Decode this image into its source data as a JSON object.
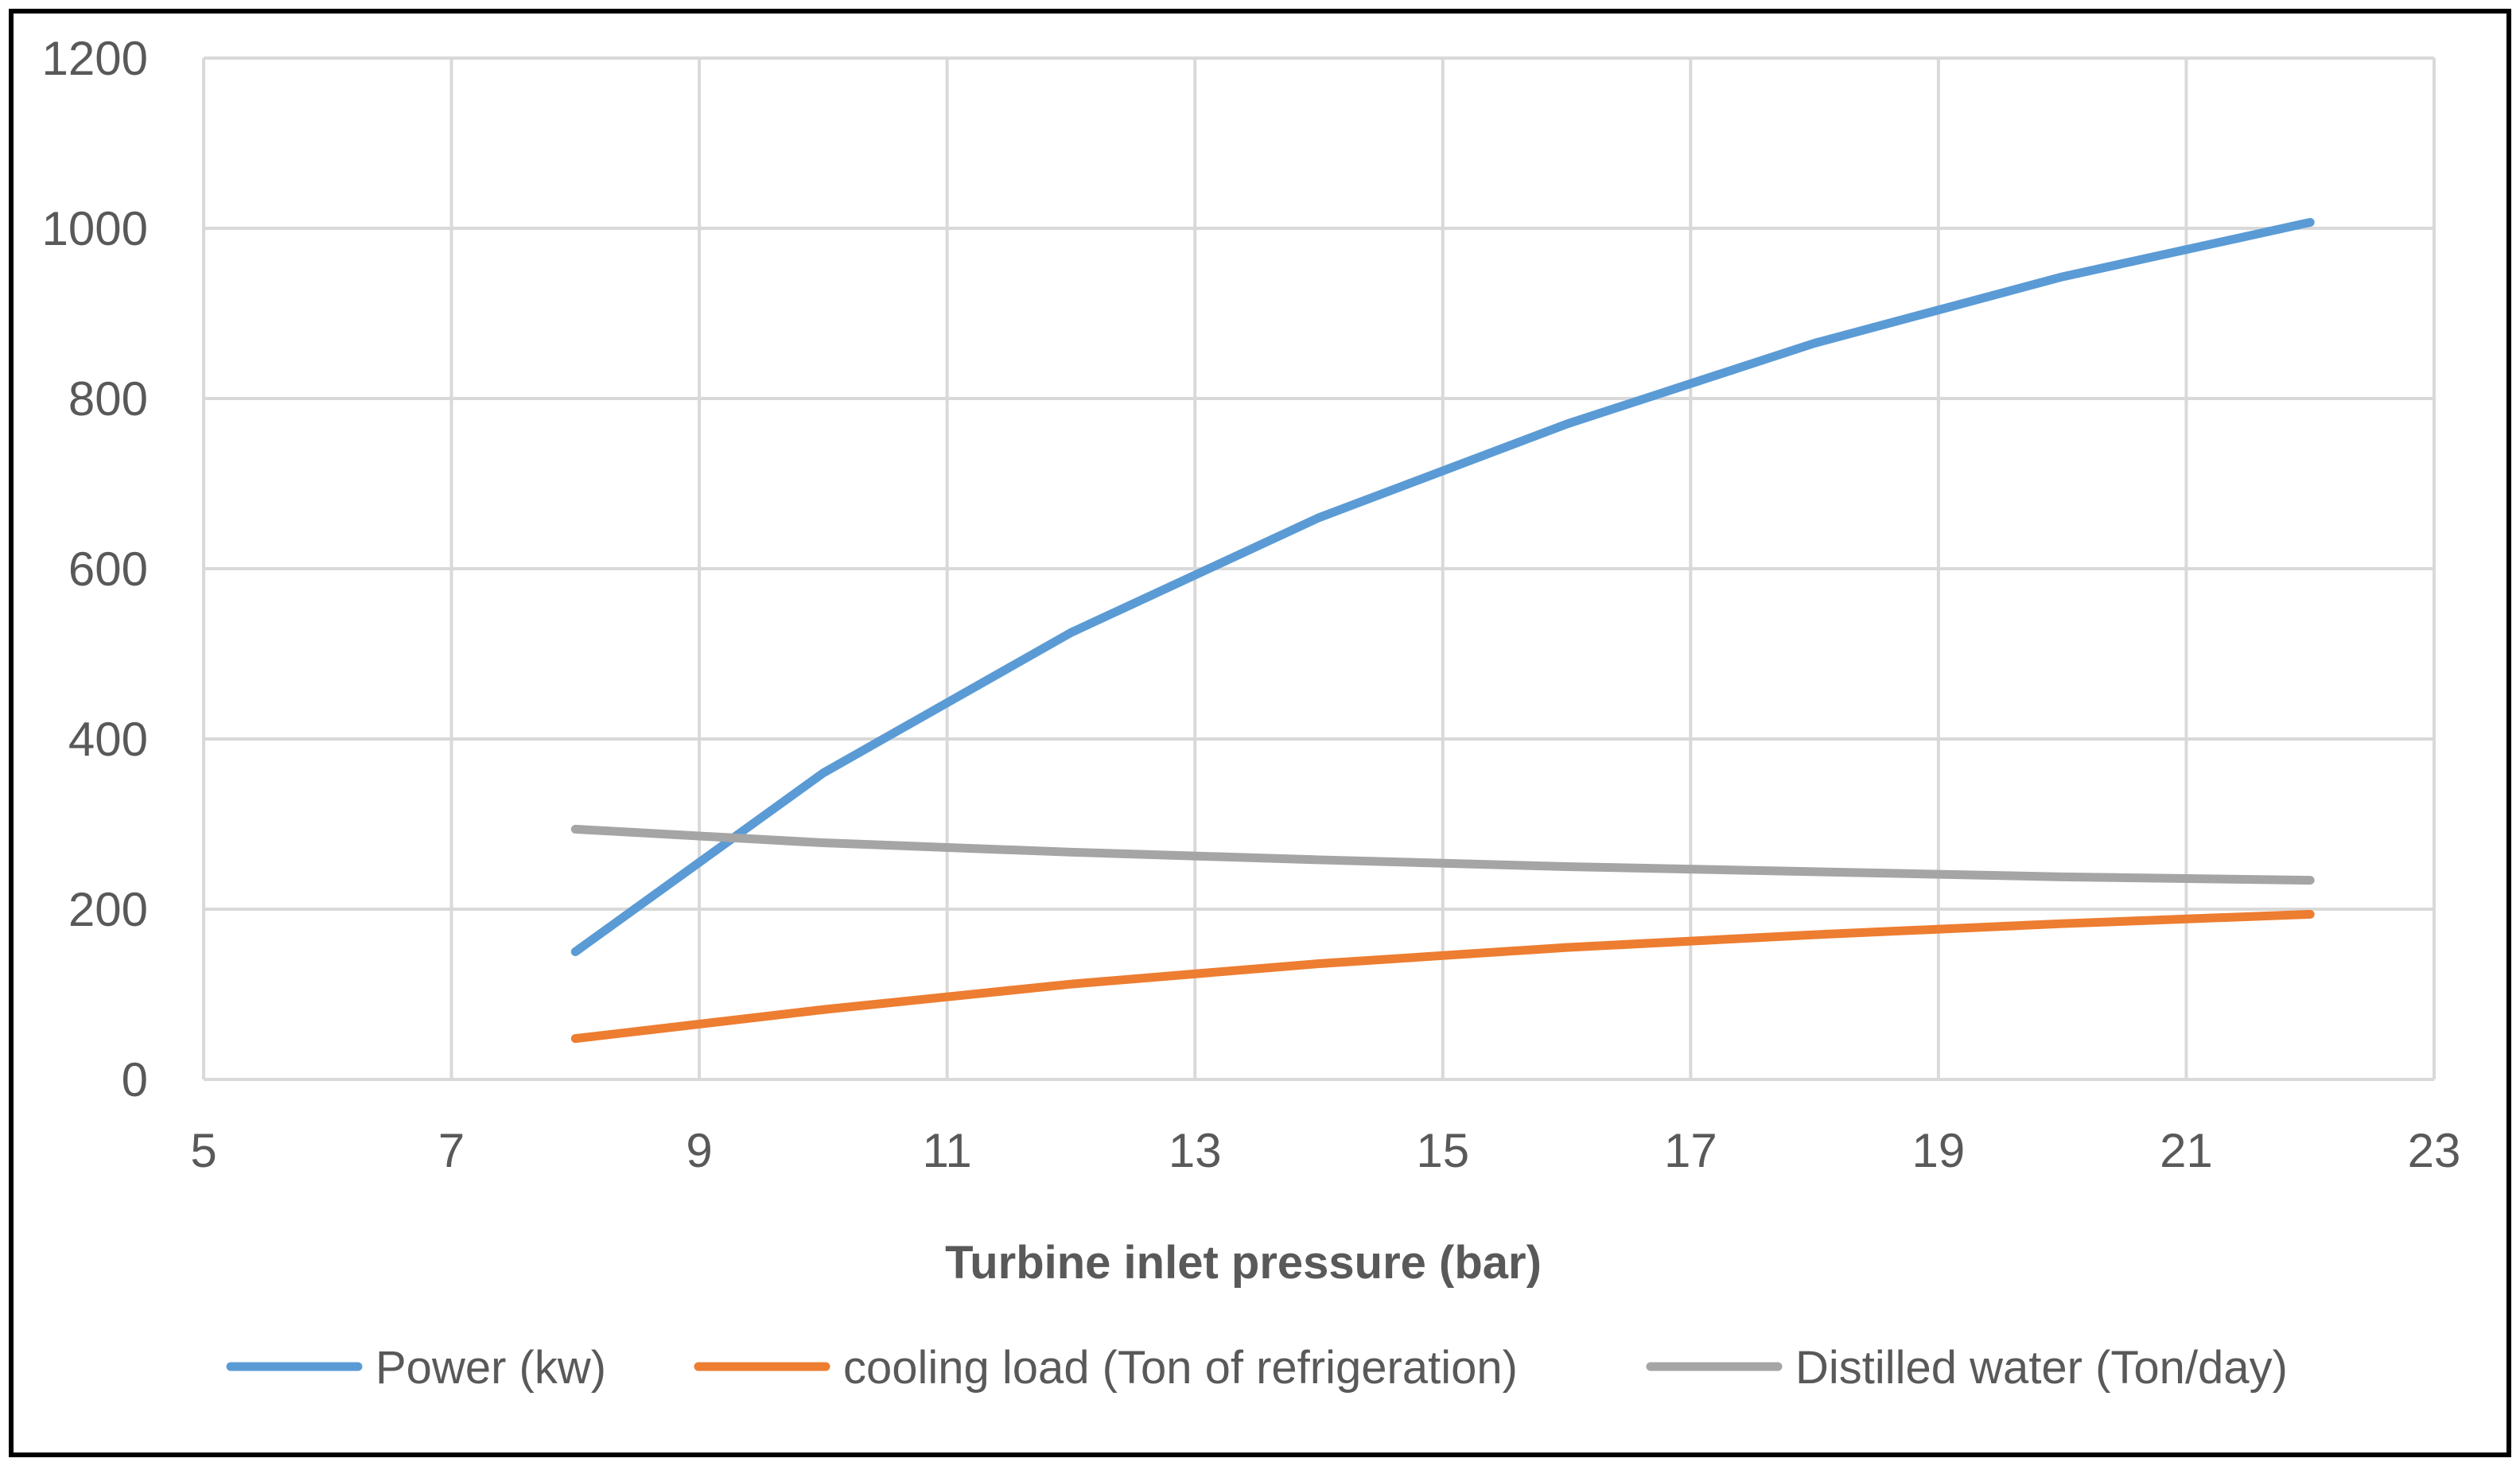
{
  "chart_data": {
    "type": "line",
    "title": "",
    "xlabel": "Turbine inlet pressure (bar)",
    "ylabel": "",
    "xlim": [
      5,
      23
    ],
    "ylim": [
      0,
      1200
    ],
    "xticks": [
      5,
      7,
      9,
      11,
      13,
      15,
      17,
      19,
      21,
      23
    ],
    "yticks": [
      0,
      200,
      400,
      600,
      800,
      1000,
      1200
    ],
    "grid": true,
    "legend_position": "bottom",
    "x": [
      8,
      10,
      12,
      14,
      16,
      18,
      20,
      22
    ],
    "series": [
      {
        "name": "Power (kw)",
        "color": "#5B9BD5",
        "values": [
          150,
          360,
          525,
          660,
          770,
          865,
          943,
          1007
        ]
      },
      {
        "name": "cooling load (Ton of refrigeration)",
        "color": "#ED7D31",
        "values": [
          48,
          82,
          112,
          136,
          155,
          170,
          183,
          194
        ]
      },
      {
        "name": "Distilled water (Ton/day)",
        "color": "#A5A5A5",
        "values": [
          294,
          278,
          267,
          258,
          250,
          244,
          238,
          234
        ]
      }
    ]
  },
  "colors": {
    "grid": "#D9D9D9",
    "text": "#595959",
    "border": "#000000"
  }
}
